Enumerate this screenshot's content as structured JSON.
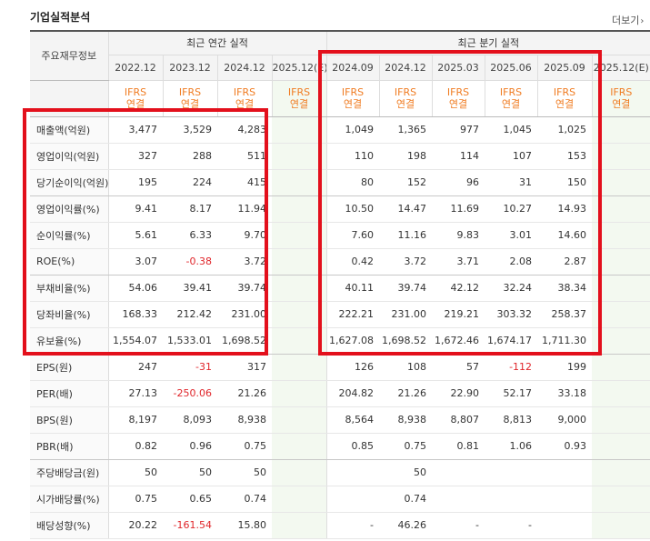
{
  "title": "기업실적분석",
  "more_label": "더보기",
  "label_header": "주요재무정보",
  "group_annual": "최근 연간 실적",
  "group_quarter": "최근 분기 실적",
  "annual_periods": [
    "2022.12",
    "2023.12",
    "2024.12",
    "2025.12(E)"
  ],
  "quarter_periods": [
    "2024.09",
    "2024.12",
    "2025.03",
    "2025.06",
    "2025.09",
    "2025.12(E)"
  ],
  "ifrs_line1": "IFRS",
  "ifrs_line2": "연결",
  "rows": [
    {
      "label": "매출액(억원)",
      "annual": [
        "3,477",
        "3,529",
        "4,283",
        ""
      ],
      "quarter": [
        "1,049",
        "1,365",
        "977",
        "1,045",
        "1,025",
        ""
      ]
    },
    {
      "label": "영업이익(억원)",
      "annual": [
        "327",
        "288",
        "511",
        ""
      ],
      "quarter": [
        "110",
        "198",
        "114",
        "107",
        "153",
        ""
      ]
    },
    {
      "label": "당기순이익(억원)",
      "annual": [
        "195",
        "224",
        "415",
        ""
      ],
      "quarter": [
        "80",
        "152",
        "96",
        "31",
        "150",
        ""
      ]
    },
    {
      "label": "영업이익률(%)",
      "annual": [
        "9.41",
        "8.17",
        "11.94",
        ""
      ],
      "quarter": [
        "10.50",
        "14.47",
        "11.69",
        "10.27",
        "14.93",
        ""
      ]
    },
    {
      "label": "순이익률(%)",
      "annual": [
        "5.61",
        "6.33",
        "9.70",
        ""
      ],
      "quarter": [
        "7.60",
        "11.16",
        "9.83",
        "3.01",
        "14.60",
        ""
      ]
    },
    {
      "label": "ROE(%)",
      "annual": [
        "3.07",
        "-0.38",
        "3.72",
        ""
      ],
      "quarter": [
        "0.42",
        "3.72",
        "3.71",
        "2.08",
        "2.87",
        ""
      ]
    },
    {
      "label": "부채비율(%)",
      "annual": [
        "54.06",
        "39.41",
        "39.74",
        ""
      ],
      "quarter": [
        "40.11",
        "39.74",
        "42.12",
        "32.24",
        "38.34",
        ""
      ]
    },
    {
      "label": "당좌비율(%)",
      "annual": [
        "168.33",
        "212.42",
        "231.00",
        ""
      ],
      "quarter": [
        "222.21",
        "231.00",
        "219.21",
        "303.32",
        "258.37",
        ""
      ]
    },
    {
      "label": "유보율(%)",
      "annual": [
        "1,554.07",
        "1,533.01",
        "1,698.52",
        ""
      ],
      "quarter": [
        "1,627.08",
        "1,698.52",
        "1,672.46",
        "1,674.17",
        "1,711.30",
        ""
      ]
    },
    {
      "label": "EPS(원)",
      "annual": [
        "247",
        "-31",
        "317",
        ""
      ],
      "quarter": [
        "126",
        "108",
        "57",
        "-112",
        "199",
        ""
      ]
    },
    {
      "label": "PER(배)",
      "annual": [
        "27.13",
        "-250.06",
        "21.26",
        ""
      ],
      "quarter": [
        "204.82",
        "21.26",
        "22.90",
        "52.17",
        "33.18",
        ""
      ]
    },
    {
      "label": "BPS(원)",
      "annual": [
        "8,197",
        "8,093",
        "8,938",
        ""
      ],
      "quarter": [
        "8,564",
        "8,938",
        "8,807",
        "8,813",
        "9,000",
        ""
      ]
    },
    {
      "label": "PBR(배)",
      "annual": [
        "0.82",
        "0.96",
        "0.75",
        ""
      ],
      "quarter": [
        "0.85",
        "0.75",
        "0.81",
        "1.06",
        "0.93",
        ""
      ]
    },
    {
      "label": "주당배당금(원)",
      "annual": [
        "50",
        "50",
        "50",
        ""
      ],
      "quarter": [
        "",
        "50",
        "",
        "",
        "",
        ""
      ]
    },
    {
      "label": "시가배당률(%)",
      "annual": [
        "0.75",
        "0.65",
        "0.74",
        ""
      ],
      "quarter": [
        "",
        "0.74",
        "",
        "",
        "",
        ""
      ]
    },
    {
      "label": "배당성향(%)",
      "annual": [
        "20.22",
        "-161.54",
        "15.80",
        ""
      ],
      "quarter": [
        "-",
        "46.26",
        "-",
        "-",
        "",
        ""
      ]
    }
  ],
  "colors": {
    "accent_orange": "#f07c22",
    "negative": "#e0262b",
    "highlight": "#e3101c",
    "estimate_bg": "#f3f9f0"
  }
}
